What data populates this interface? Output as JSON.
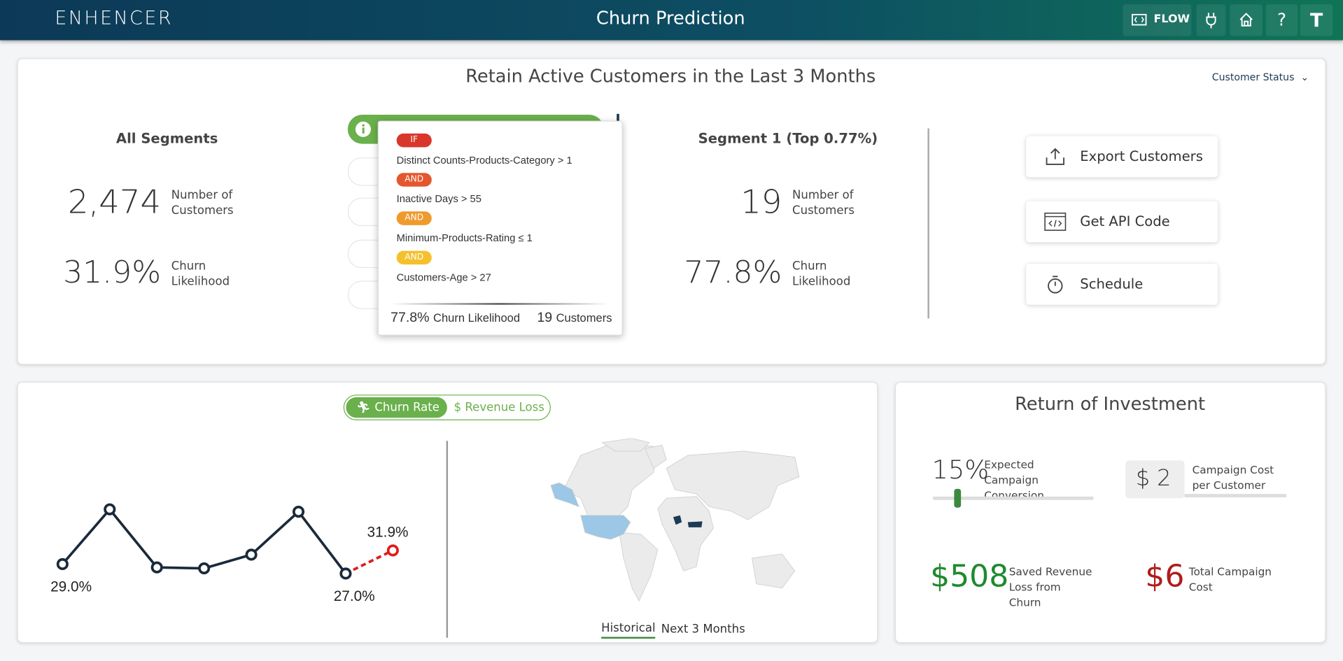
{
  "header": {
    "logo": "ENHENCER",
    "title": "Churn Prediction",
    "buttons": {
      "flow": "FLOW",
      "help": "?",
      "user": "T"
    }
  },
  "retain_panel": {
    "title": "Retain Active Customers in the Last 3 Months",
    "filter": "Customer Status",
    "all_segments": {
      "title": "All Segments",
      "customers": "2,474",
      "customers_label": "Number of Customers",
      "churn": "31.9%",
      "churn_label": "Churn Likelihood"
    },
    "tooltip": {
      "rules": [
        {
          "tag": "IF",
          "text": "Distinct Counts-Products-Category > 1"
        },
        {
          "tag": "AND",
          "text": "Inactive Days > 55"
        },
        {
          "tag": "AND",
          "text": "Minimum-Products-Rating ≤ 1"
        },
        {
          "tag": "AND",
          "text": "Customers-Age > 27"
        }
      ],
      "churn": "77.8%",
      "churn_label": "Churn Likelihood",
      "customers": "19",
      "customers_label": "Customers"
    },
    "segment": {
      "title": "Segment 1 (Top 0.77%)",
      "customers": "19",
      "customers_label": "Number of Customers",
      "churn": "77.8%",
      "churn_label": "Churn Likelihood"
    },
    "actions": [
      "Export Customers",
      "Get API Code",
      "Schedule"
    ]
  },
  "trend_panel": {
    "toggle": [
      "Churn Rate",
      "Revenue Loss"
    ],
    "trend": {
      "values": [
        29.0,
        40.6,
        28.3,
        28.1,
        31.0,
        40.1,
        27.0
      ],
      "value_labels": [
        "29.0%",
        null,
        null,
        null,
        null,
        null,
        "27.0%"
      ],
      "forecast": {
        "value": 31.9,
        "label": "31.9%"
      }
    },
    "tabs": [
      "Historical",
      "Next 3 Months"
    ]
  },
  "roi_panel": {
    "title": "Return of Investment",
    "conversion": "15%",
    "conversion_label": "Expected Campaign Conversion",
    "cost": "$ 2",
    "cost_label": "Campaign Cost per Customer",
    "saved": "$508",
    "saved_label": "Saved Revenue Loss from Churn",
    "total": "$6",
    "total_label": "Total Campaign Cost"
  }
}
